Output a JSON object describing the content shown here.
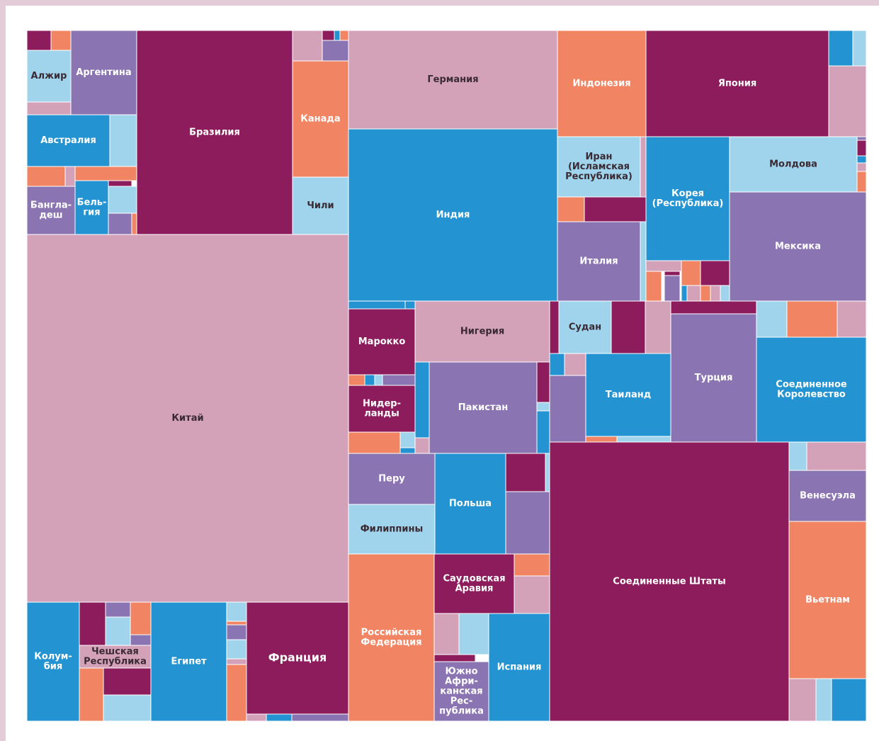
{
  "tiles": [
    {
      "label": [
        "Китай"
      ]
    },
    {
      "label": [
        "Бразилия"
      ]
    },
    {
      "label": [
        "Алжир"
      ]
    },
    {
      "label": [
        "Аргентина"
      ]
    },
    {
      "label": [
        "Австралия"
      ]
    },
    {
      "label": [
        "Бангла-",
        "деш"
      ]
    },
    {
      "label": [
        "Бель-",
        "гия"
      ]
    },
    {
      "label": [
        "Канада"
      ]
    },
    {
      "label": [
        "Чили"
      ]
    },
    {
      "label": [
        "Германия"
      ]
    },
    {
      "label": [
        "Индия"
      ]
    },
    {
      "label": [
        "Индонезия"
      ]
    },
    {
      "label": [
        "Япония"
      ]
    },
    {
      "label": [
        "Иран",
        "(Исламская",
        "Республика)"
      ]
    },
    {
      "label": [
        "Италия"
      ]
    },
    {
      "label": [
        "Корея",
        "(Республика)"
      ]
    },
    {
      "label": [
        "Молдова"
      ]
    },
    {
      "label": [
        "Мексика"
      ]
    },
    {
      "label": [
        "Марокко"
      ]
    },
    {
      "label": [
        "Нидер-",
        "ланды"
      ]
    },
    {
      "label": [
        "Нигерия"
      ]
    },
    {
      "label": [
        "Пакистан"
      ]
    },
    {
      "label": [
        "Перу"
      ]
    },
    {
      "label": [
        "Филиппины"
      ]
    },
    {
      "label": [
        "Польша"
      ]
    },
    {
      "label": [
        "Российская",
        "Федерация"
      ]
    },
    {
      "label": [
        "Саудовская",
        "Аравия"
      ]
    },
    {
      "label": [
        "Южно",
        "Афри-",
        "канская",
        "Рес-",
        "публика"
      ]
    },
    {
      "label": [
        "Испания"
      ]
    },
    {
      "label": [
        "Судан"
      ]
    },
    {
      "label": [
        "Таиланд"
      ]
    },
    {
      "label": [
        "Турция"
      ]
    },
    {
      "label": [
        "Соединенное",
        "Королевство"
      ]
    },
    {
      "label": [
        "Соединенные Штаты"
      ]
    },
    {
      "label": [
        "Венесуэла"
      ]
    },
    {
      "label": [
        "Вьетнам"
      ]
    },
    {
      "label": [
        "Колум-",
        "бия"
      ]
    },
    {
      "label": [
        "Чешская",
        "Республика"
      ]
    },
    {
      "label": [
        "Египет"
      ]
    },
    {
      "label": [
        "Франция"
      ]
    }
  ]
}
